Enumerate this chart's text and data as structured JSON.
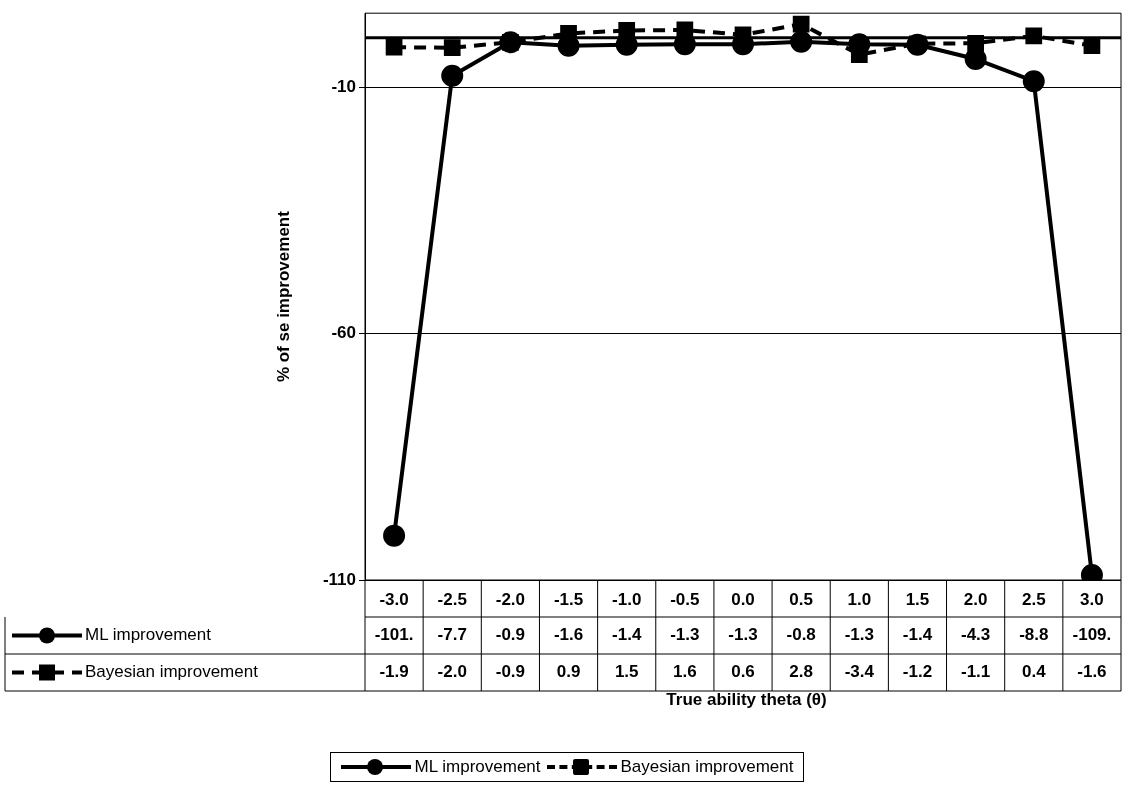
{
  "chart_data": {
    "type": "line",
    "xlabel": "True ability theta (θ)",
    "ylabel": "% of se improvement",
    "categories": [
      "-3.0",
      "-2.5",
      "-2.0",
      "-1.5",
      "-1.0",
      "-0.5",
      "0.0",
      "0.5",
      "1.0",
      "1.5",
      "2.0",
      "2.5",
      "3.0"
    ],
    "series": [
      {
        "name": "ML improvement",
        "color": "#000000",
        "marker": "circle",
        "line_style": "solid",
        "values": [
          -101,
          -7.7,
          -0.9,
          -1.6,
          -1.4,
          -1.3,
          -1.3,
          -0.8,
          -1.3,
          -1.4,
          -4.3,
          -8.8,
          -109
        ],
        "value_labels": [
          "-101.",
          "-7.7",
          "-0.9",
          "-1.6",
          "-1.4",
          "-1.3",
          "-1.3",
          "-0.8",
          "-1.3",
          "-1.4",
          "-4.3",
          "-8.8",
          "-109."
        ]
      },
      {
        "name": "Bayesian improvement",
        "color": "#000000",
        "marker": "square",
        "line_style": "dashed",
        "values": [
          -1.9,
          -2.0,
          -0.9,
          0.9,
          1.5,
          1.6,
          0.6,
          2.8,
          -3.4,
          -1.2,
          -1.1,
          0.4,
          -1.6
        ],
        "value_labels": [
          "-1.9",
          "-2.0",
          "-0.9",
          "0.9",
          "1.5",
          "1.6",
          "0.6",
          "2.8",
          "-3.4",
          "-1.2",
          "-1.1",
          "0.4",
          "-1.6"
        ]
      }
    ],
    "ylim": [
      -110,
      5
    ],
    "yticks": [
      -110,
      -60,
      -10
    ],
    "ref_lines": [
      {
        "axis": "y",
        "value": 0,
        "color": "#000000"
      }
    ],
    "grid": "y",
    "legend": "bottom"
  }
}
